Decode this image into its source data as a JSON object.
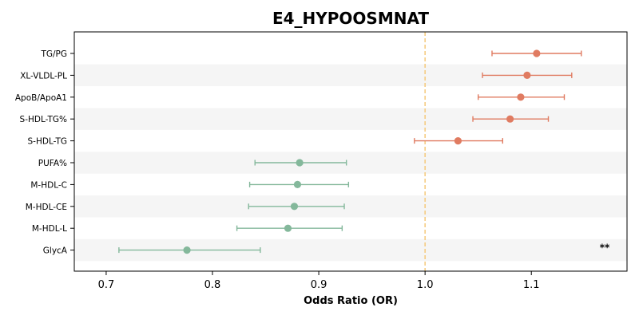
{
  "chart_data": {
    "type": "forest",
    "title": "E4_HYPOOSMNAT",
    "xlabel": "Odds Ratio (OR)",
    "xlim": [
      0.67,
      1.19
    ],
    "xticks": [
      0.7,
      0.8,
      0.9,
      1.0,
      1.1
    ],
    "xtick_labels": [
      "0.7",
      "0.8",
      "0.9",
      "1.0",
      "1.1"
    ],
    "reference_line": 1.0,
    "colors": {
      "positive": "#e07b61",
      "negative": "#84b89b",
      "reference": "#f5c97a",
      "band": "#f5f5f5"
    },
    "rows": [
      {
        "label": "TG/PG",
        "or": 1.105,
        "lo": 1.063,
        "hi": 1.147,
        "direction": "positive",
        "annotation": ""
      },
      {
        "label": "XL-VLDL-PL",
        "or": 1.096,
        "lo": 1.054,
        "hi": 1.138,
        "direction": "positive",
        "annotation": ""
      },
      {
        "label": "ApoB/ApoA1",
        "or": 1.09,
        "lo": 1.05,
        "hi": 1.131,
        "direction": "positive",
        "annotation": ""
      },
      {
        "label": "S-HDL-TG%",
        "or": 1.08,
        "lo": 1.045,
        "hi": 1.116,
        "direction": "positive",
        "annotation": ""
      },
      {
        "label": "S-HDL-TG",
        "or": 1.031,
        "lo": 0.99,
        "hi": 1.073,
        "direction": "positive",
        "annotation": ""
      },
      {
        "label": "PUFA%",
        "or": 0.882,
        "lo": 0.84,
        "hi": 0.926,
        "direction": "negative",
        "annotation": ""
      },
      {
        "label": "M-HDL-C",
        "or": 0.88,
        "lo": 0.835,
        "hi": 0.928,
        "direction": "negative",
        "annotation": ""
      },
      {
        "label": "M-HDL-CE",
        "or": 0.877,
        "lo": 0.834,
        "hi": 0.924,
        "direction": "negative",
        "annotation": ""
      },
      {
        "label": "M-HDL-L",
        "or": 0.871,
        "lo": 0.823,
        "hi": 0.922,
        "direction": "negative",
        "annotation": ""
      },
      {
        "label": "GlycA",
        "or": 0.776,
        "lo": 0.712,
        "hi": 0.845,
        "direction": "negative",
        "annotation": "**"
      }
    ]
  }
}
